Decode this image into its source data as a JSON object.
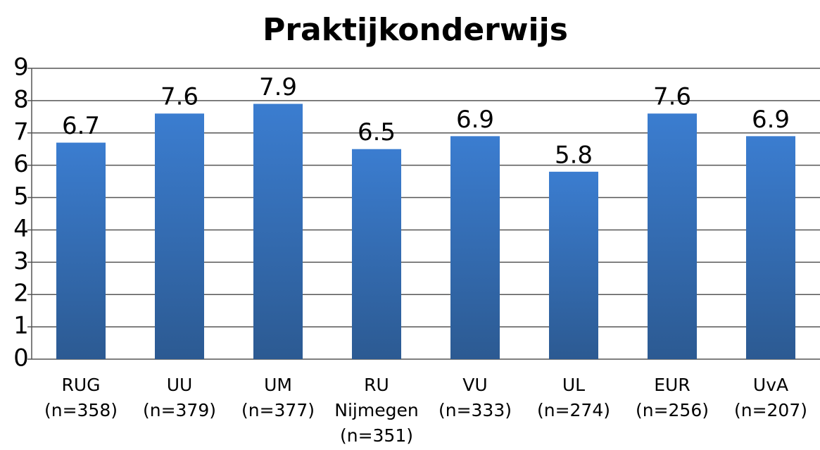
{
  "chart_data": {
    "type": "bar",
    "title": "Praktijkonderwijs",
    "categories": [
      [
        "RUG",
        "(n=358)"
      ],
      [
        "UU",
        "(n=379)"
      ],
      [
        "UM",
        "(n=377)"
      ],
      [
        "RU",
        "Nijmegen",
        "(n=351)"
      ],
      [
        "VU",
        "(n=333)"
      ],
      [
        "UL",
        "(n=274)"
      ],
      [
        "EUR",
        "(n=256)"
      ],
      [
        "UvA",
        "(n=207)"
      ]
    ],
    "values": [
      6.7,
      7.6,
      7.9,
      6.5,
      6.9,
      5.8,
      7.6,
      6.9
    ],
    "color": "#3b7dd0",
    "ylim": [
      0,
      9
    ],
    "yticks": [
      0,
      1,
      2,
      3,
      4,
      5,
      6,
      7,
      8,
      9
    ],
    "grid": true
  }
}
